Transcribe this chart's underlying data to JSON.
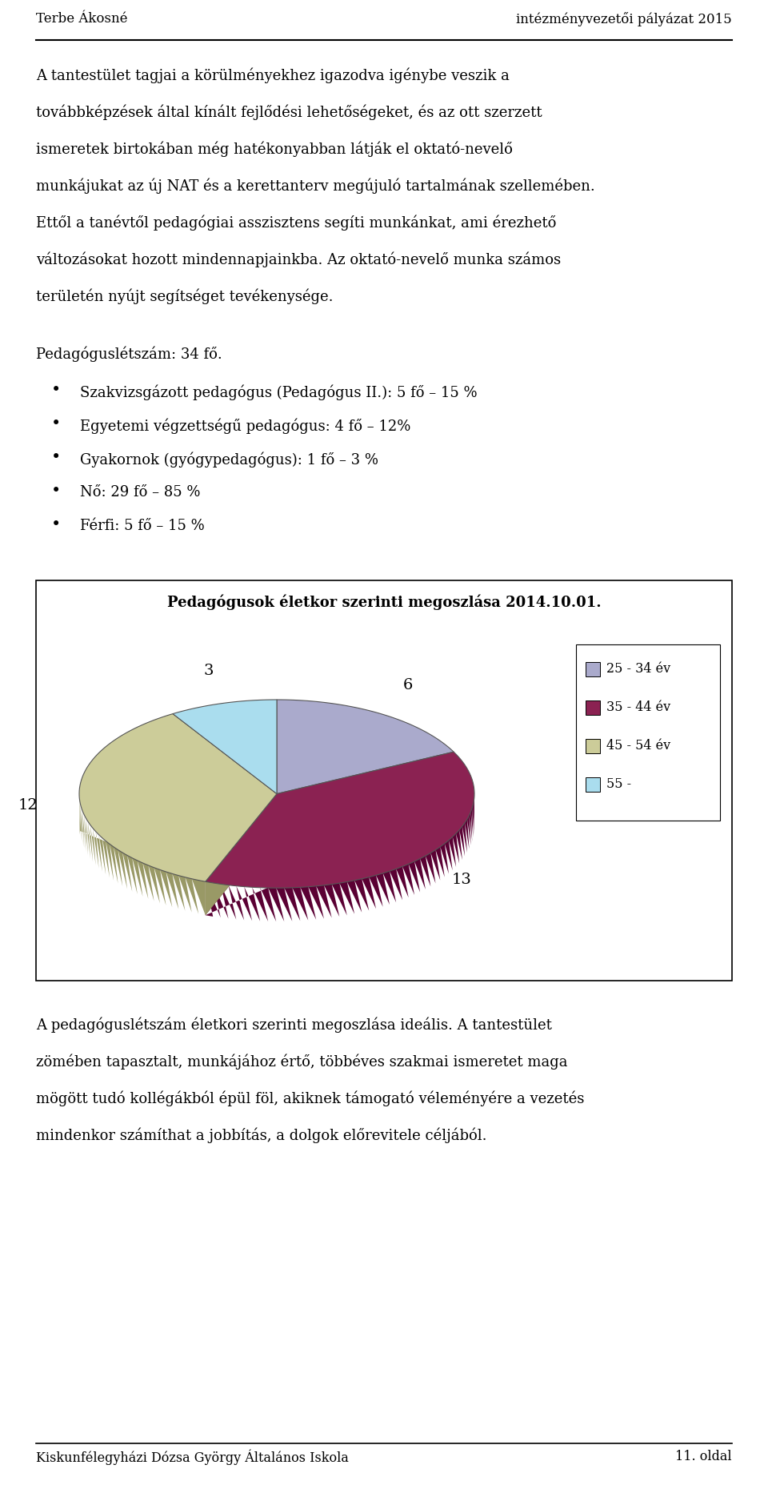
{
  "header_left_text": "Terbe Ákosné",
  "header_right": "intézményvezetői pályázat 2015",
  "para1_lines": [
    "A tantestület tagjai a körülményekhez igazodva igénybe veszik a",
    "továbbképzések által kínált fejlődési lehetőségeket, és az ott szerzett",
    "ismeretek birtokában még hatékonyabban látják el oktató-nevelő",
    "munkájukat az új NAT és a kerettanterv megújuló tartalmának szellemében.",
    "Ettől a tanévtől pedagógiai asszisztens segíti munkánkat, ami érezhető",
    "változásokat hozott mindennapjainkba. Az oktató-nevelő munka számos",
    "területén nyújt segítséget tevékenysége."
  ],
  "pedagogue_count": "Pedagóguslétszám: 34 fő.",
  "bullets": [
    "Szakvizsgázott pedagógus (Pedagógus II.): 5 fő – 15 %",
    "Egyetemi végzettségű pedagógus: 4 fő – 12%",
    "Gyakornok (gyógypedagógus): 1 fő – 3 %",
    "Nő: 29 fő – 85 %",
    "Férfi: 5 fő – 15 %"
  ],
  "chart_title": "Pedagógusok életkor szerinti megoszlása 2014.10.01.",
  "pie_values": [
    6,
    13,
    12,
    3
  ],
  "pie_colors": [
    "#aaaacc",
    "#8b2252",
    "#cccc99",
    "#aaddee"
  ],
  "pie_side_colors": [
    "#7777aa",
    "#5a0033",
    "#999966",
    "#88bbcc"
  ],
  "legend_labels": [
    "25 - 34 év",
    "35 - 44 év",
    "45 - 54 év",
    "55 -"
  ],
  "para2_lines": [
    "A pedagóguslétszám életkori szerinti megoszlása ideális. A tantestület",
    "zömében tapasztalt, munkájához értő, többéves szakmai ismeretet maga",
    "mögött tudó kollégákból épül föl, akiknek támogató véleményére a vezetés",
    "mindenkor számíthat a jobbítás, a dolgok előrevitele céljából."
  ],
  "footer_left": "Kiskunfélegyházi Dózsa György Általános Iskola",
  "footer_right": "11. oldal"
}
